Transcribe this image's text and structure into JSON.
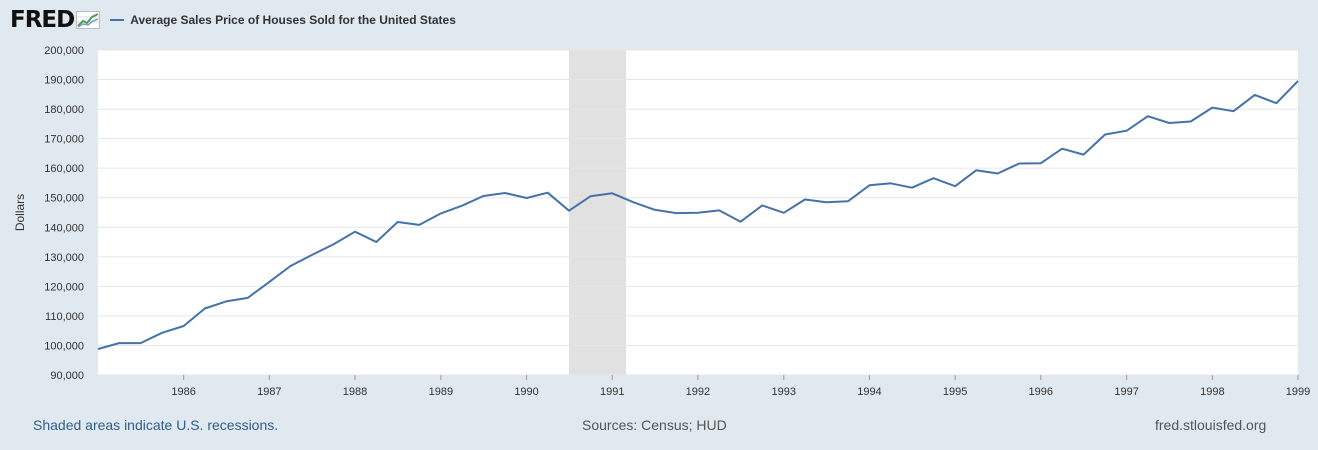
{
  "header": {
    "logo_text": "FRED",
    "series_title": "Average Sales Price of Houses Sold for the United States"
  },
  "footer": {
    "recession_note": "Shaded areas indicate U.S. recessions.",
    "sources": "Sources: Census; HUD",
    "site": "fred.stlouisfed.org"
  },
  "colors": {
    "line": "#4572a7",
    "recession": "#e1e1e1",
    "background": "#e1e9f0",
    "plot_bg": "#ffffff",
    "grid": "#e6e6e6"
  },
  "chart_data": {
    "type": "line",
    "title": "Average Sales Price of Houses Sold for the United States",
    "xlabel": "",
    "ylabel": "Dollars",
    "x_ticks": [
      "1986",
      "1987",
      "1988",
      "1989",
      "1990",
      "1991",
      "1992",
      "1993",
      "1994",
      "1995",
      "1996",
      "1997",
      "1998",
      "1999"
    ],
    "y_ticks": [
      "90,000",
      "100,000",
      "110,000",
      "120,000",
      "130,000",
      "140,000",
      "150,000",
      "160,000",
      "170,000",
      "180,000",
      "190,000",
      "200,000"
    ],
    "ylim": [
      90000,
      200000
    ],
    "xlim": [
      "1985-01-01",
      "1999-01-01"
    ],
    "grid": true,
    "recessions": [
      {
        "start": "1990-07-01",
        "end": "1991-03-01"
      }
    ],
    "series": [
      {
        "name": "Average Sales Price of Houses Sold for the United States",
        "x": [
          "1985-01-01",
          "1985-04-01",
          "1985-07-01",
          "1985-10-01",
          "1986-01-01",
          "1986-04-01",
          "1986-07-01",
          "1986-10-01",
          "1987-01-01",
          "1987-04-01",
          "1987-07-01",
          "1987-10-01",
          "1988-01-01",
          "1988-04-01",
          "1988-07-01",
          "1988-10-01",
          "1989-01-01",
          "1989-04-01",
          "1989-07-01",
          "1989-10-01",
          "1990-01-01",
          "1990-04-01",
          "1990-07-01",
          "1990-10-01",
          "1991-01-01",
          "1991-04-01",
          "1991-07-01",
          "1991-10-01",
          "1992-01-01",
          "1992-04-01",
          "1992-07-01",
          "1992-10-01",
          "1993-01-01",
          "1993-04-01",
          "1993-07-01",
          "1993-10-01",
          "1994-01-01",
          "1994-04-01",
          "1994-07-01",
          "1994-10-01",
          "1995-01-01",
          "1995-04-01",
          "1995-07-01",
          "1995-10-01",
          "1996-01-01",
          "1996-04-01",
          "1996-07-01",
          "1996-10-01",
          "1997-01-01",
          "1997-04-01",
          "1997-07-01",
          "1997-10-01",
          "1998-01-01",
          "1998-04-01",
          "1998-07-01",
          "1998-10-01",
          "1999-01-01"
        ],
        "values": [
          98800,
          100800,
          100800,
          104300,
          106600,
          112500,
          114900,
          116100,
          121500,
          126900,
          130600,
          134200,
          138500,
          135000,
          141800,
          140800,
          144700,
          147300,
          150600,
          151600,
          149900,
          151700,
          145600,
          150500,
          151500,
          148500,
          145900,
          144800,
          144900,
          145700,
          141900,
          147400,
          144900,
          149400,
          148500,
          148800,
          154200,
          154900,
          153400,
          156600,
          153900,
          159300,
          158200,
          161600,
          161700,
          166600,
          164600,
          171400,
          172700,
          177600,
          175300,
          175800,
          180500,
          179300,
          184800,
          182000,
          189500
        ]
      }
    ]
  }
}
